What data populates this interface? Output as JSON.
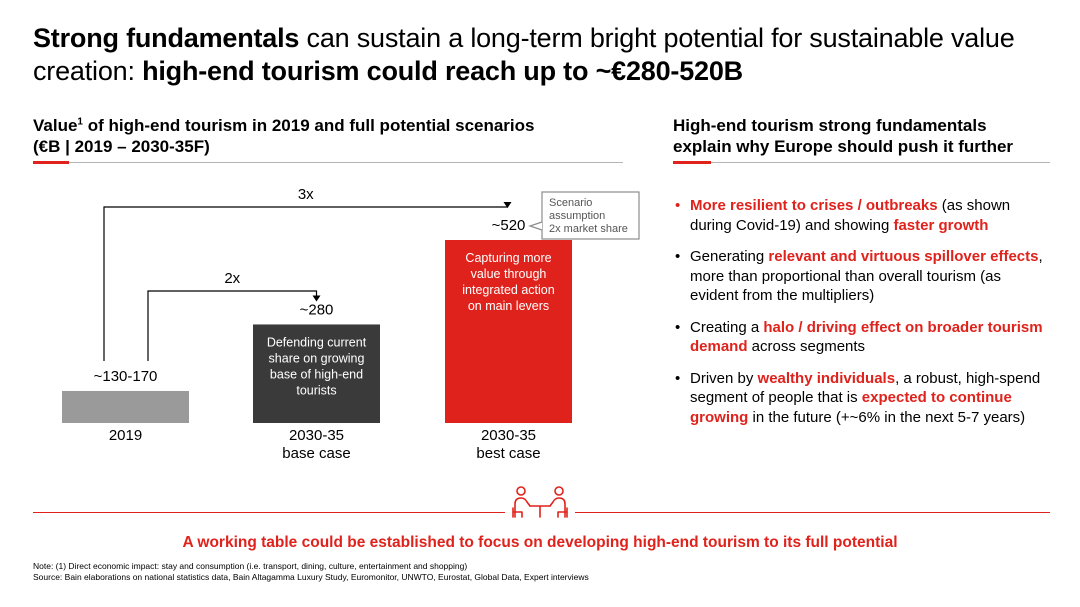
{
  "header": {
    "title_bold_1": "Strong fundamentals",
    "title_regular": " can sustain a long-term bright potential for sustainable value creation: ",
    "title_bold_2": "high-end tourism could reach up to ~€280-520B"
  },
  "left_section": {
    "title_part1": "Value",
    "title_sup": "1",
    "title_part2": " of high-end tourism in 2019 and full potential scenarios",
    "title_line2": "(€B | 2019 – 2030-35F)"
  },
  "right_section": {
    "title_line1": "High-end tourism strong fundamentals",
    "title_line2": "explain why Europe should push it further",
    "bullets": [
      {
        "dot": "•",
        "segments": [
          {
            "text": "More resilient to crises / outbreaks",
            "red": true
          },
          {
            "text": " (as shown during Covid-19) and showing ",
            "red": false
          },
          {
            "text": "faster growth",
            "red": true
          }
        ]
      },
      {
        "dot": "•",
        "segments": [
          {
            "text": "Generating ",
            "red": false
          },
          {
            "text": "relevant and virtuous spillover effects",
            "red": true
          },
          {
            "text": ", more than proportional than overall tourism (as evident from the multipliers)",
            "red": false
          }
        ]
      },
      {
        "dot": "•",
        "segments": [
          {
            "text": "Creating a ",
            "red": false
          },
          {
            "text": "halo / driving effect on broader tourism demand",
            "red": true
          },
          {
            "text": " across segments",
            "red": false
          }
        ]
      },
      {
        "dot": "•",
        "segments": [
          {
            "text": "Driven by ",
            "red": false
          },
          {
            "text": "wealthy individuals",
            "red": true
          },
          {
            "text": ", a robust, high-spend segment of people that is ",
            "red": false
          },
          {
            "text": "expected to continue growing",
            "red": true
          },
          {
            "text": " in the future (+~6% in the next 5-7 years)",
            "red": false
          }
        ]
      }
    ]
  },
  "chart_data": {
    "type": "bar",
    "categories": [
      "2019",
      "2030-35 base case",
      "2030-35 best case"
    ],
    "category_lines": [
      [
        "2019"
      ],
      [
        "2030-35",
        "base case"
      ],
      [
        "2030-35",
        "best case"
      ]
    ],
    "values": [
      150,
      280,
      520
    ],
    "value_labels": [
      "~130-170",
      "~280",
      "~520"
    ],
    "value_range_2019": [
      130,
      170
    ],
    "bar_colors": [
      "#9a9a9a",
      "#3a3a3a",
      "#e0221c"
    ],
    "bar_texts": [
      "",
      "Defending current share on growing base of high-end tourists",
      "Capturing more value through integrated action on main levers"
    ],
    "bar_text_lines": [
      [],
      [
        "Defending current",
        "share on growing",
        "base of high-end",
        "tourists"
      ],
      [
        "Capturing more",
        "value through",
        "integrated action",
        "on main levers"
      ]
    ],
    "growth_annotations": [
      {
        "label": "2x",
        "from": "2019",
        "to": "2030-35 base case"
      },
      {
        "label": "3x",
        "from": "2019",
        "to": "2030-35 best case"
      }
    ],
    "callout_lines": [
      "Scenario",
      "assumption",
      "2x market share"
    ]
  },
  "bottom": {
    "message": "A working table could be established to focus on developing high-end tourism to its full potential",
    "note": "Note: (1) Direct economic impact: stay and consumption (i.e. transport, dining, culture, entertainment and shopping)",
    "source": "Source: Bain elaborations on national statistics data, Bain Altagamma Luxury Study, Euromonitor, UNWTO, Eurostat, Global Data, Expert interviews"
  },
  "colors": {
    "accent": "#e0221c",
    "dark_bar": "#3a3a3a",
    "grey_bar": "#9a9a9a"
  },
  "icons": {
    "meeting": "meeting-table-icon"
  }
}
